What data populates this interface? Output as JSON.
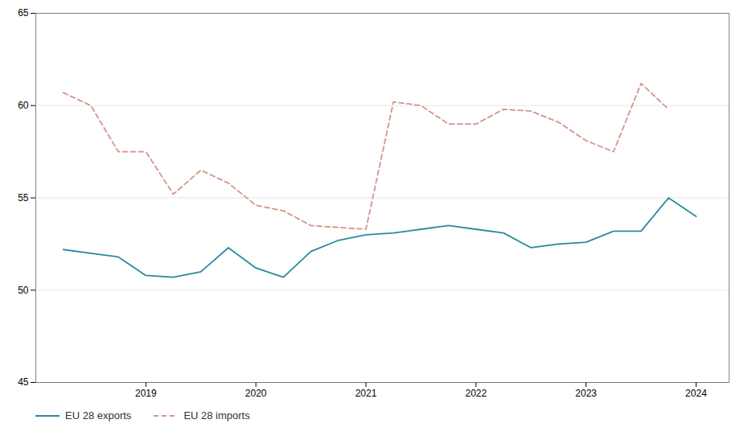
{
  "chart_data": {
    "type": "line",
    "x": [
      2018.25,
      2018.5,
      2018.75,
      2019.0,
      2019.25,
      2019.5,
      2019.75,
      2020.0,
      2020.25,
      2020.5,
      2020.75,
      2021.0,
      2021.25,
      2021.5,
      2021.75,
      2022.0,
      2022.25,
      2022.5,
      2022.75,
      2023.0,
      2023.25,
      2023.5,
      2023.75,
      2024.0
    ],
    "series": [
      {
        "name": "EU 28 exports",
        "color": "#2a8a9f",
        "line_style": "solid",
        "values": [
          52.2,
          52.0,
          51.8,
          50.8,
          50.7,
          51.0,
          52.3,
          51.2,
          50.7,
          52.1,
          52.7,
          53.0,
          53.1,
          53.3,
          53.5,
          53.3,
          53.1,
          52.3,
          52.5,
          52.6,
          53.2,
          53.2,
          55.0,
          54.0
        ]
      },
      {
        "name": "EU 28 imports",
        "color": "#d4948a",
        "line_style": "dashed",
        "values": [
          60.7,
          60.0,
          57.5,
          57.5,
          55.2,
          56.5,
          55.8,
          54.6,
          54.3,
          53.5,
          53.4,
          53.3,
          60.2,
          60.0,
          59.0,
          59.0,
          59.8,
          59.7,
          59.1,
          58.1,
          57.5,
          61.2,
          59.8,
          null
        ]
      }
    ],
    "xlim": [
      2018.0,
      2024.3
    ],
    "xticks": [
      2019,
      2020,
      2021,
      2022,
      2023,
      2024
    ],
    "ylim": [
      45,
      65
    ],
    "yticks": [
      45,
      50,
      55,
      60,
      65
    ],
    "grid": true,
    "legend": "bottom"
  }
}
